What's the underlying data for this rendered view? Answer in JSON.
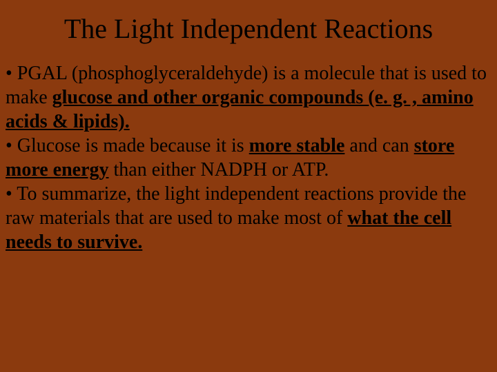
{
  "slide": {
    "background_color": "#8b3a0e",
    "text_color": "#000000",
    "font_family": "Times New Roman",
    "title": {
      "text": "The Light Independent Reactions",
      "fontsize": 40,
      "align": "center"
    },
    "body": {
      "fontsize": 28,
      "bullets": [
        {
          "runs": [
            {
              "t": "• PGAL (phosphoglyceraldehyde) is a molecule that is used to make ",
              "style": ""
            },
            {
              "t": "glucose and other organic compounds (e. g. , amino acids & lipids).",
              "style": "bu"
            }
          ]
        },
        {
          "runs": [
            {
              "t": "• Glucose is made because it is ",
              "style": ""
            },
            {
              "t": "more stable",
              "style": "bu"
            },
            {
              "t": " and can ",
              "style": ""
            },
            {
              "t": "store more energy",
              "style": "bu"
            },
            {
              "t": " than either NADPH or ATP.",
              "style": ""
            }
          ]
        },
        {
          "runs": [
            {
              "t": "• To summarize, the light independent reactions provide the raw materials that are used to make most of   ",
              "style": ""
            },
            {
              "t": "what the cell needs to survive.",
              "style": "bu"
            }
          ]
        }
      ]
    }
  }
}
